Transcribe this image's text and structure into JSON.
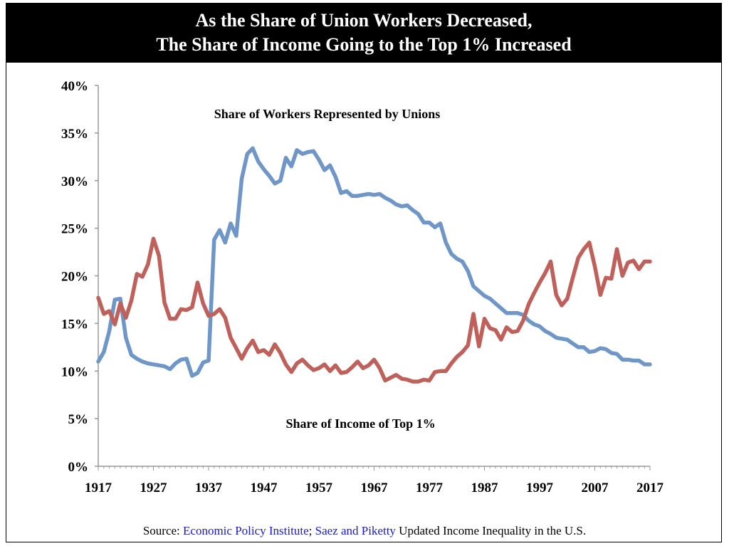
{
  "header": {
    "title_line1": "As the Share of Union Workers Decreased,",
    "title_line2": "The Share of Income Going to the Top 1% Increased"
  },
  "source": {
    "prefix": "Source: ",
    "link1": "Economic Policy Institute",
    "sep": "; ",
    "link2": "Saez and Piketty",
    "suffix": " Updated Income Inequality in the U.S."
  },
  "colors": {
    "union": "#6e96c8",
    "income": "#c0605a",
    "axis": "#999999"
  },
  "chart_data": {
    "type": "line",
    "xlim": [
      1917,
      2017
    ],
    "ylim": [
      0,
      40
    ],
    "x_ticks": [
      1917,
      1927,
      1937,
      1947,
      1957,
      1967,
      1977,
      1987,
      1997,
      2007,
      2017
    ],
    "x_tick_labels": [
      "1917",
      "1927",
      "1937",
      "1947",
      "1957",
      "1967",
      "1977",
      "1987",
      "1997",
      "2007",
      "2017"
    ],
    "y_ticks": [
      0,
      5,
      10,
      15,
      20,
      25,
      30,
      35,
      40
    ],
    "y_tick_labels": [
      "0%",
      "5%",
      "10%",
      "15%",
      "20%",
      "25%",
      "30%",
      "35%",
      "40%"
    ],
    "grid": false,
    "annotations": [
      {
        "text": "Share of Workers Represented by Unions",
        "x": 1938,
        "y": 37,
        "color": "#000000"
      },
      {
        "text": "Share of Income of Top 1%",
        "x": 1951,
        "y": 4.5,
        "color": "#000000"
      }
    ],
    "series": [
      {
        "key": "union",
        "x": [
          1917,
          1918,
          1919,
          1920,
          1921,
          1922,
          1923,
          1924,
          1925,
          1926,
          1927,
          1928,
          1929,
          1930,
          1931,
          1932,
          1933,
          1934,
          1935,
          1936,
          1937,
          1938,
          1939,
          1940,
          1941,
          1942,
          1943,
          1944,
          1945,
          1946,
          1947,
          1948,
          1949,
          1950,
          1951,
          1952,
          1953,
          1954,
          1955,
          1956,
          1957,
          1958,
          1959,
          1960,
          1961,
          1962,
          1963,
          1964,
          1965,
          1966,
          1967,
          1968,
          1969,
          1970,
          1971,
          1972,
          1973,
          1974,
          1975,
          1976,
          1977,
          1978,
          1979,
          1980,
          1981,
          1982,
          1983,
          1984,
          1985,
          1986,
          1987,
          1988,
          1989,
          1990,
          1991,
          1992,
          1993,
          1994,
          1995,
          1996,
          1997,
          1998,
          1999,
          2000,
          2001,
          2002,
          2003,
          2004,
          2005,
          2006,
          2007,
          2008,
          2009,
          2010,
          2011,
          2012,
          2013,
          2014,
          2015,
          2016,
          2017
        ],
        "values": [
          11.0,
          12.0,
          14.2,
          17.5,
          17.6,
          13.5,
          11.7,
          11.3,
          11.0,
          10.8,
          10.7,
          10.6,
          10.5,
          10.2,
          10.8,
          11.2,
          11.3,
          9.5,
          9.8,
          10.9,
          11.1,
          23.8,
          24.8,
          23.5,
          25.5,
          24.2,
          30.2,
          32.8,
          33.4,
          32.0,
          31.2,
          30.5,
          29.7,
          30.0,
          32.4,
          31.5,
          33.2,
          32.8,
          33.0,
          33.1,
          32.2,
          31.1,
          31.6,
          30.4,
          28.7,
          28.9,
          28.4,
          28.4,
          28.5,
          28.6,
          28.5,
          28.6,
          28.2,
          27.9,
          27.5,
          27.3,
          27.4,
          26.9,
          26.5,
          25.6,
          25.6,
          25.1,
          25.5,
          23.5,
          22.3,
          21.8,
          21.5,
          20.5,
          18.9,
          18.4,
          17.9,
          17.6,
          17.1,
          16.6,
          16.1,
          16.1,
          16.1,
          15.9,
          15.3,
          14.9,
          14.7,
          14.2,
          13.9,
          13.5,
          13.4,
          13.3,
          12.9,
          12.5,
          12.5,
          12.0,
          12.1,
          12.4,
          12.3,
          11.9,
          11.8,
          11.2,
          11.2,
          11.1,
          11.1,
          10.7,
          10.7
        ]
      },
      {
        "key": "income",
        "x": [
          1917,
          1918,
          1919,
          1920,
          1921,
          1922,
          1923,
          1924,
          1925,
          1926,
          1927,
          1928,
          1929,
          1930,
          1931,
          1932,
          1933,
          1934,
          1935,
          1936,
          1937,
          1938,
          1939,
          1940,
          1941,
          1942,
          1943,
          1944,
          1945,
          1946,
          1947,
          1948,
          1949,
          1950,
          1951,
          1952,
          1953,
          1954,
          1955,
          1956,
          1957,
          1958,
          1959,
          1960,
          1961,
          1962,
          1963,
          1964,
          1965,
          1966,
          1967,
          1968,
          1969,
          1970,
          1971,
          1972,
          1973,
          1974,
          1975,
          1976,
          1977,
          1978,
          1979,
          1980,
          1981,
          1982,
          1983,
          1984,
          1985,
          1986,
          1987,
          1988,
          1989,
          1990,
          1991,
          1992,
          1993,
          1994,
          1995,
          1996,
          1997,
          1998,
          1999,
          2000,
          2001,
          2002,
          2003,
          2004,
          2005,
          2006,
          2007,
          2008,
          2009,
          2010,
          2011,
          2012,
          2013,
          2014,
          2015,
          2016,
          2017
        ],
        "values": [
          17.7,
          16.0,
          16.3,
          14.9,
          17.1,
          15.6,
          17.4,
          20.2,
          19.9,
          21.2,
          23.9,
          22.1,
          17.2,
          15.5,
          15.5,
          16.5,
          16.4,
          16.7,
          19.3,
          17.1,
          15.8,
          16.0,
          16.5,
          15.6,
          13.5,
          12.4,
          11.3,
          12.4,
          13.2,
          12.0,
          12.2,
          11.7,
          12.8,
          11.9,
          10.7,
          9.9,
          10.8,
          11.2,
          10.6,
          10.1,
          10.3,
          10.7,
          10.0,
          10.6,
          9.8,
          9.9,
          10.4,
          11.0,
          10.3,
          10.6,
          11.2,
          10.3,
          9.0,
          9.3,
          9.6,
          9.2,
          9.1,
          8.9,
          8.9,
          9.1,
          9.0,
          9.9,
          10.0,
          10.0,
          10.8,
          11.5,
          12.0,
          12.7,
          16.0,
          12.6,
          15.5,
          14.5,
          14.3,
          13.3,
          14.6,
          14.1,
          14.2,
          15.3,
          17.0,
          18.2,
          19.3,
          20.3,
          21.5,
          18.0,
          16.9,
          17.6,
          19.8,
          21.9,
          22.8,
          23.5,
          21.0,
          18.0,
          19.8,
          19.7,
          22.8,
          20.0,
          21.4,
          21.6,
          20.7,
          21.5,
          21.5
        ]
      }
    ]
  }
}
